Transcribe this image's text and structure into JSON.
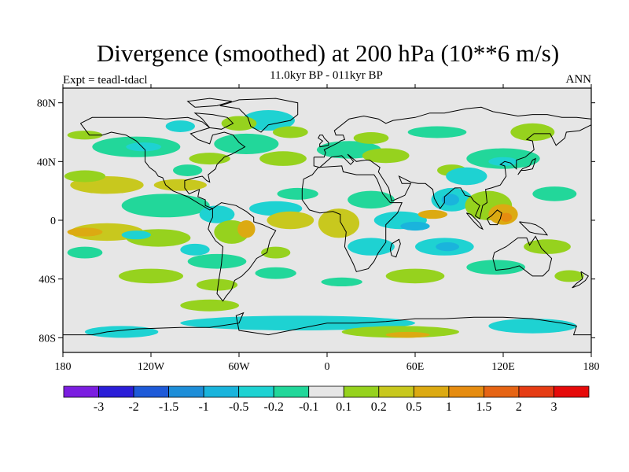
{
  "title": "Divergence (smoothed) at 200 hPa (10**6 m/s)",
  "subtitle_left": "Expt = teadl-tdacl",
  "subtitle_center": "11.0kyr BP - 011kyr BP",
  "subtitle_right": "ANN",
  "map": {
    "lon_range": [
      -180,
      180
    ],
    "lat_range": [
      -90,
      90
    ],
    "lat_ticks": [
      {
        "value": 80,
        "label": "80N"
      },
      {
        "value": 40,
        "label": "40N"
      },
      {
        "value": 0,
        "label": "0"
      },
      {
        "value": -40,
        "label": "40S"
      },
      {
        "value": -80,
        "label": "80S"
      }
    ],
    "lon_ticks": [
      {
        "value": -180,
        "label": "180"
      },
      {
        "value": -120,
        "label": "120W"
      },
      {
        "value": -60,
        "label": "60W"
      },
      {
        "value": 0,
        "label": "0"
      },
      {
        "value": 60,
        "label": "60E"
      },
      {
        "value": 120,
        "label": "120E"
      },
      {
        "value": 180,
        "label": "180"
      }
    ],
    "background_color": "#e6e6e6"
  },
  "colorbar": {
    "colors": [
      "#7b1ee0",
      "#2b1ed8",
      "#1e5ad8",
      "#1e8ed8",
      "#1ab4dc",
      "#1ed2d2",
      "#22d79a",
      "#e6e6e6",
      "#96d21e",
      "#c8c81e",
      "#dcaa12",
      "#e68c10",
      "#e66414",
      "#e63c14",
      "#e60a0a"
    ],
    "labels": [
      "-3",
      "-2",
      "-1.5",
      "-1",
      "-0.5",
      "-0.2",
      "-0.1",
      "0.1",
      "0.2",
      "0.5",
      "1",
      "1.5",
      "2",
      "3"
    ]
  },
  "regions": [
    {
      "color": "#1ed2d2",
      "lon": -40,
      "lat": 68,
      "rx": 18,
      "ry": 7
    },
    {
      "color": "#96d21e",
      "lon": -60,
      "lat": 66,
      "rx": 12,
      "ry": 5
    },
    {
      "color": "#1ed2d2",
      "lon": -100,
      "lat": 64,
      "rx": 10,
      "ry": 4
    },
    {
      "color": "#96d21e",
      "lon": -25,
      "lat": 60,
      "rx": 12,
      "ry": 4
    },
    {
      "color": "#22d79a",
      "lon": -130,
      "lat": 50,
      "rx": 30,
      "ry": 7
    },
    {
      "color": "#1ed2d2",
      "lon": -125,
      "lat": 50,
      "rx": 12,
      "ry": 3
    },
    {
      "color": "#96d21e",
      "lon": -165,
      "lat": 58,
      "rx": 12,
      "ry": 3
    },
    {
      "color": "#22d79a",
      "lon": -55,
      "lat": 52,
      "rx": 22,
      "ry": 7
    },
    {
      "color": "#96d21e",
      "lon": -30,
      "lat": 42,
      "rx": 16,
      "ry": 5
    },
    {
      "color": "#96d21e",
      "lon": -80,
      "lat": 42,
      "rx": 14,
      "ry": 4
    },
    {
      "color": "#22d79a",
      "lon": -95,
      "lat": 34,
      "rx": 10,
      "ry": 4
    },
    {
      "color": "#22d79a",
      "lon": 15,
      "lat": 48,
      "rx": 22,
      "ry": 6
    },
    {
      "color": "#96d21e",
      "lon": 40,
      "lat": 44,
      "rx": 16,
      "ry": 5
    },
    {
      "color": "#96d21e",
      "lon": 30,
      "lat": 56,
      "rx": 12,
      "ry": 4
    },
    {
      "color": "#22d79a",
      "lon": 120,
      "lat": 42,
      "rx": 25,
      "ry": 7
    },
    {
      "color": "#1ed2d2",
      "lon": 120,
      "lat": 40,
      "rx": 10,
      "ry": 3
    },
    {
      "color": "#96d21e",
      "lon": 85,
      "lat": 34,
      "rx": 10,
      "ry": 4
    },
    {
      "color": "#96d21e",
      "lon": 140,
      "lat": 60,
      "rx": 15,
      "ry": 6
    },
    {
      "color": "#22d79a",
      "lon": 75,
      "lat": 60,
      "rx": 20,
      "ry": 4
    },
    {
      "color": "#c8c81e",
      "lon": -150,
      "lat": 24,
      "rx": 25,
      "ry": 6
    },
    {
      "color": "#96d21e",
      "lon": -165,
      "lat": 30,
      "rx": 14,
      "ry": 4
    },
    {
      "color": "#c8c81e",
      "lon": -100,
      "lat": 24,
      "rx": 18,
      "ry": 4
    },
    {
      "color": "#22d79a",
      "lon": -110,
      "lat": 10,
      "rx": 30,
      "ry": 8
    },
    {
      "color": "#1ed2d2",
      "lon": -75,
      "lat": 4,
      "rx": 12,
      "ry": 6
    },
    {
      "color": "#1ed2d2",
      "lon": -35,
      "lat": 8,
      "rx": 18,
      "ry": 5
    },
    {
      "color": "#22d79a",
      "lon": -20,
      "lat": 18,
      "rx": 14,
      "ry": 4
    },
    {
      "color": "#c8c81e",
      "lon": -150,
      "lat": -8,
      "rx": 25,
      "ry": 6
    },
    {
      "color": "#dcaa12",
      "lon": -165,
      "lat": -8,
      "rx": 12,
      "ry": 3
    },
    {
      "color": "#96d21e",
      "lon": -115,
      "lat": -12,
      "rx": 22,
      "ry": 6
    },
    {
      "color": "#1ed2d2",
      "lon": -130,
      "lat": -10,
      "rx": 10,
      "ry": 3
    },
    {
      "color": "#96d21e",
      "lon": -65,
      "lat": -8,
      "rx": 12,
      "ry": 8
    },
    {
      "color": "#dcaa12",
      "lon": -55,
      "lat": -6,
      "rx": 6,
      "ry": 6
    },
    {
      "color": "#c8c81e",
      "lon": -25,
      "lat": 0,
      "rx": 16,
      "ry": 6
    },
    {
      "color": "#22d79a",
      "lon": -75,
      "lat": -28,
      "rx": 20,
      "ry": 5
    },
    {
      "color": "#1ed2d2",
      "lon": -90,
      "lat": -20,
      "rx": 10,
      "ry": 4
    },
    {
      "color": "#96d21e",
      "lon": -120,
      "lat": -38,
      "rx": 22,
      "ry": 5
    },
    {
      "color": "#96d21e",
      "lon": -75,
      "lat": -44,
      "rx": 14,
      "ry": 4
    },
    {
      "color": "#22d79a",
      "lon": -35,
      "lat": -36,
      "rx": 14,
      "ry": 4
    },
    {
      "color": "#22d79a",
      "lon": -165,
      "lat": -22,
      "rx": 12,
      "ry": 4
    },
    {
      "color": "#96d21e",
      "lon": -35,
      "lat": -22,
      "rx": 10,
      "ry": 4
    },
    {
      "color": "#22d79a",
      "lon": 30,
      "lat": 14,
      "rx": 16,
      "ry": 6
    },
    {
      "color": "#1ed2d2",
      "lon": 50,
      "lat": 0,
      "rx": 18,
      "ry": 6
    },
    {
      "color": "#1ab4dc",
      "lon": 60,
      "lat": -4,
      "rx": 10,
      "ry": 3
    },
    {
      "color": "#1ed2d2",
      "lon": 80,
      "lat": -18,
      "rx": 20,
      "ry": 6
    },
    {
      "color": "#1ab4dc",
      "lon": 82,
      "lat": -18,
      "rx": 8,
      "ry": 3
    },
    {
      "color": "#1ed2d2",
      "lon": 85,
      "lat": 14,
      "rx": 14,
      "ry": 8
    },
    {
      "color": "#1ab4dc",
      "lon": 84,
      "lat": 14,
      "rx": 6,
      "ry": 4
    },
    {
      "color": "#dcaa12",
      "lon": 72,
      "lat": 4,
      "rx": 10,
      "ry": 3
    },
    {
      "color": "#96d21e",
      "lon": 110,
      "lat": 10,
      "rx": 16,
      "ry": 10
    },
    {
      "color": "#dcaa12",
      "lon": 120,
      "lat": 4,
      "rx": 10,
      "ry": 7
    },
    {
      "color": "#e68c10",
      "lon": 122,
      "lat": 2,
      "rx": 4,
      "ry": 3
    },
    {
      "color": "#1ed2d2",
      "lon": 95,
      "lat": 30,
      "rx": 14,
      "ry": 6
    },
    {
      "color": "#c8c81e",
      "lon": 8,
      "lat": -2,
      "rx": 14,
      "ry": 10
    },
    {
      "color": "#1ed2d2",
      "lon": 30,
      "lat": -18,
      "rx": 16,
      "ry": 6
    },
    {
      "color": "#96d21e",
      "lon": 60,
      "lat": -38,
      "rx": 20,
      "ry": 5
    },
    {
      "color": "#22d79a",
      "lon": 115,
      "lat": -32,
      "rx": 20,
      "ry": 5
    },
    {
      "color": "#96d21e",
      "lon": 150,
      "lat": -18,
      "rx": 16,
      "ry": 5
    },
    {
      "color": "#22d79a",
      "lon": 155,
      "lat": 18,
      "rx": 15,
      "ry": 5
    },
    {
      "color": "#96d21e",
      "lon": 165,
      "lat": -38,
      "rx": 10,
      "ry": 4
    },
    {
      "color": "#22d79a",
      "lon": 10,
      "lat": -42,
      "rx": 14,
      "ry": 3
    },
    {
      "color": "#1ed2d2",
      "lon": -20,
      "lat": -70,
      "rx": 80,
      "ry": 5
    },
    {
      "color": "#96d21e",
      "lon": 50,
      "lat": -76,
      "rx": 40,
      "ry": 4
    },
    {
      "color": "#dcaa12",
      "lon": 55,
      "lat": -78,
      "rx": 15,
      "ry": 2
    },
    {
      "color": "#1ed2d2",
      "lon": -140,
      "lat": -76,
      "rx": 25,
      "ry": 4
    },
    {
      "color": "#96d21e",
      "lon": -80,
      "lat": -58,
      "rx": 20,
      "ry": 4
    },
    {
      "color": "#1ed2d2",
      "lon": 140,
      "lat": -72,
      "rx": 30,
      "ry": 5
    }
  ]
}
